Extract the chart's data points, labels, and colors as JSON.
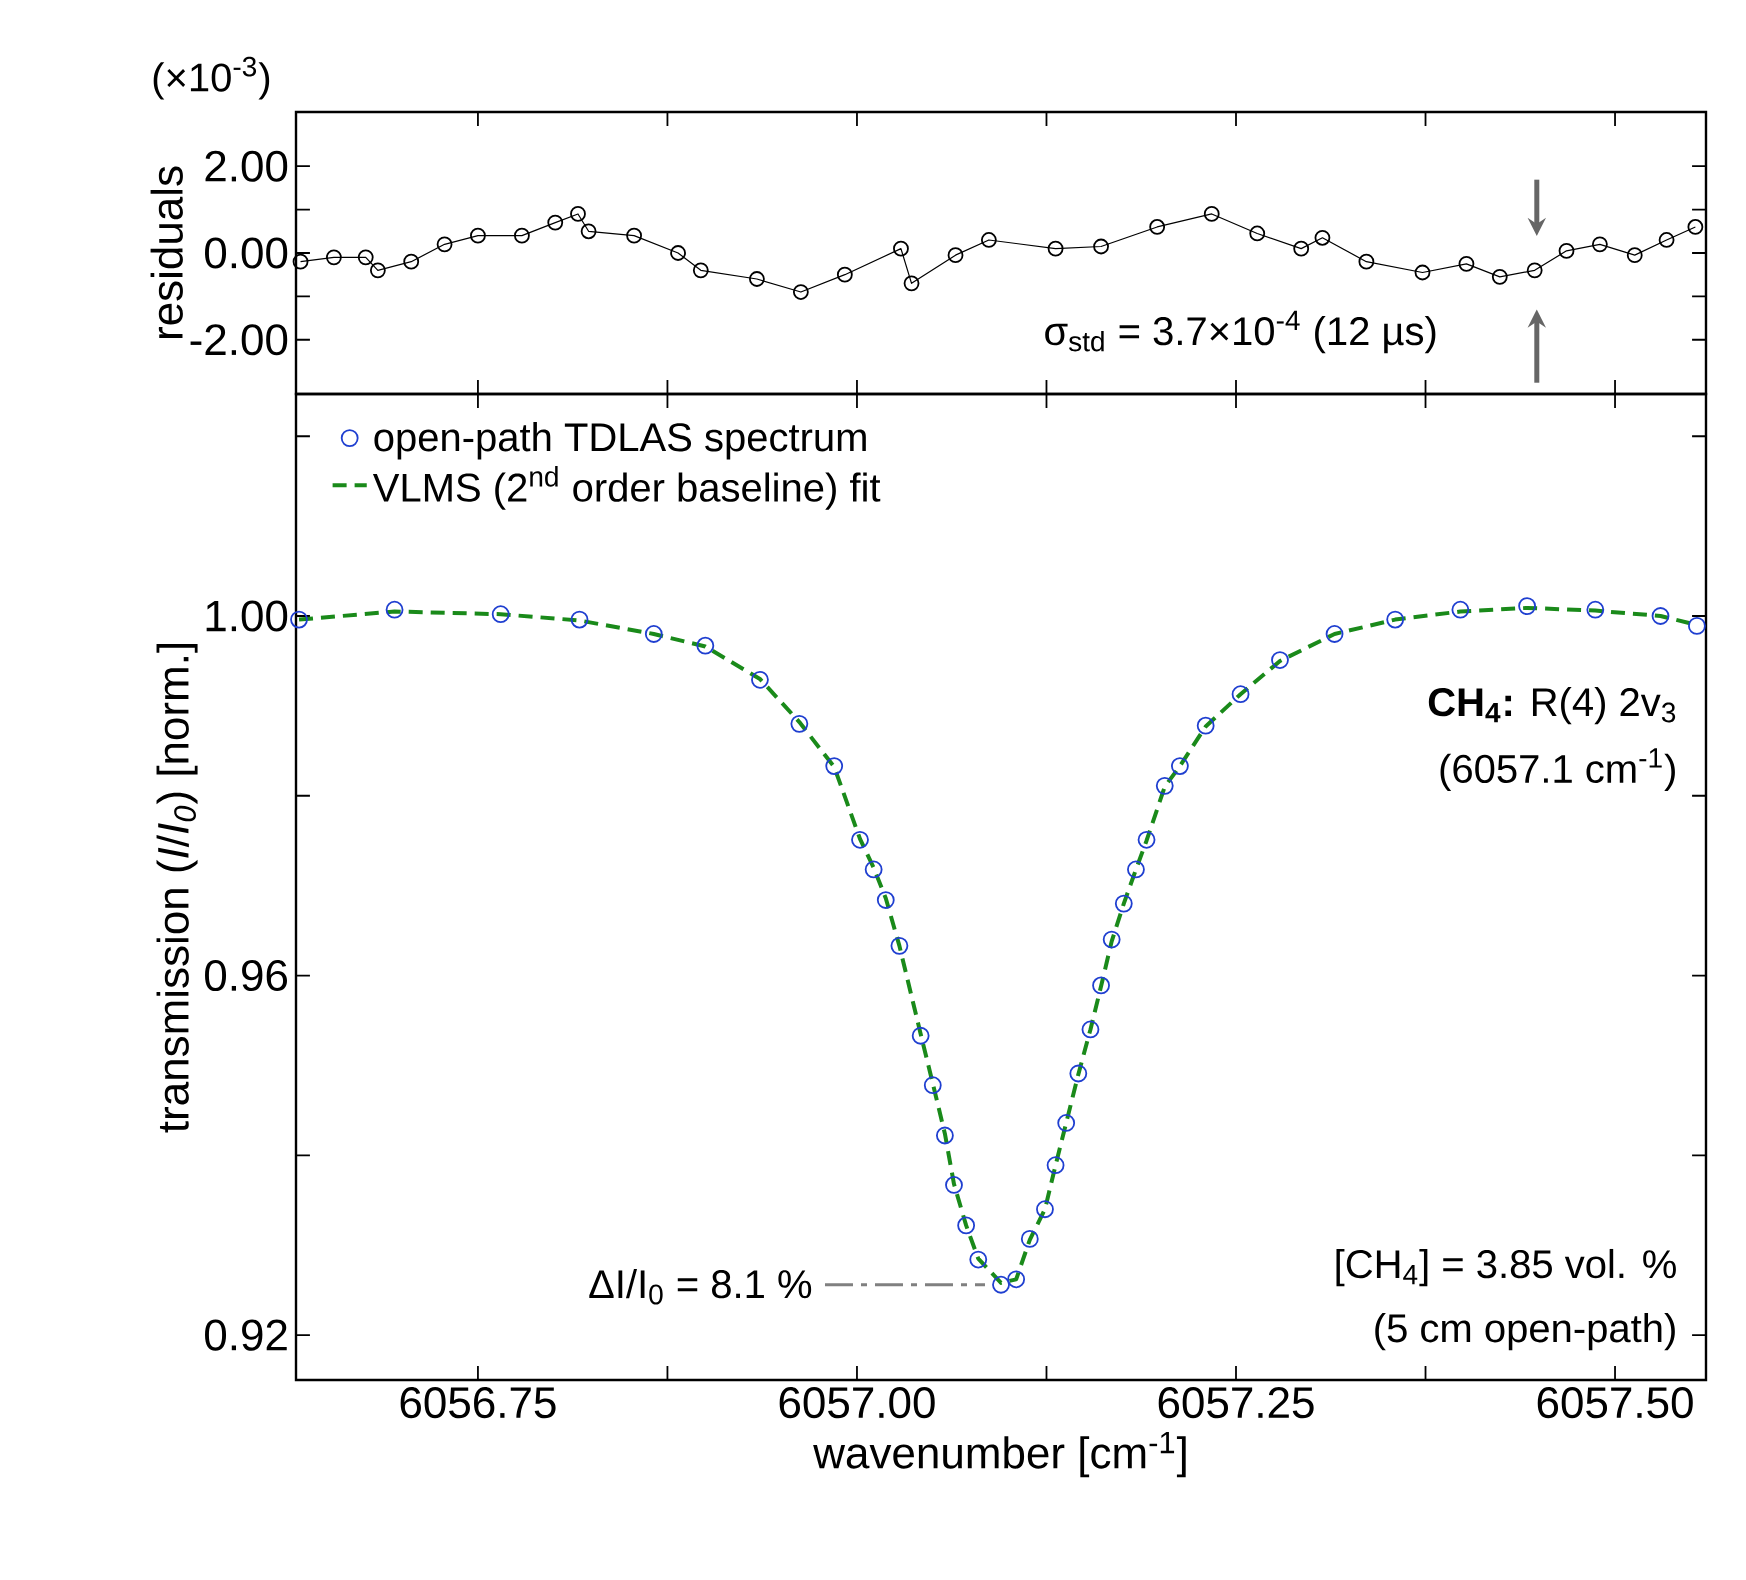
{
  "chart_data": [
    {
      "type": "line",
      "ylabel": "residuals",
      "xlim": [
        6056.63,
        6057.56
      ],
      "ylim": [
        -3.25,
        3.25
      ],
      "xticks": [
        {
          "value": 6056.75,
          "label": null
        },
        {
          "value": 6056.875,
          "label": null
        },
        {
          "value": 6057.0,
          "label": null
        },
        {
          "value": 6057.125,
          "label": null
        },
        {
          "value": 6057.25,
          "label": null
        },
        {
          "value": 6057.375,
          "label": null
        },
        {
          "value": 6057.5,
          "label": null
        }
      ],
      "yticks": [
        {
          "value": -2,
          "label": "-2.00"
        },
        {
          "value": -1,
          "label": null
        },
        {
          "value": 0,
          "label": "0.00"
        },
        {
          "value": 1,
          "label": null
        },
        {
          "value": 2,
          "label": "2.00"
        }
      ],
      "tick_labels": "y",
      "marker": "circle",
      "x": [
        6056.633,
        6056.655,
        6056.676,
        6056.684,
        6056.706,
        6056.728,
        6056.75,
        6056.779,
        6056.801,
        6056.816,
        6056.823,
        6056.853,
        6056.882,
        6056.897,
        6056.934,
        6056.963,
        6056.992,
        6057.029,
        6057.036,
        6057.065,
        6057.087,
        6057.131,
        6057.161,
        6057.198,
        6057.234,
        6057.264,
        6057.293,
        6057.307,
        6057.336,
        6057.373,
        6057.402,
        6057.424,
        6057.447,
        6057.468,
        6057.49,
        6057.513,
        6057.534,
        6057.553
      ],
      "series": [
        {
          "color": "#000000",
          "values": [
            -0.2,
            -0.1,
            -0.1,
            -0.4,
            -0.2,
            0.2,
            0.4,
            0.4,
            0.7,
            0.9,
            0.5,
            0.4,
            0.0,
            -0.4,
            -0.6,
            -0.9,
            -0.5,
            0.1,
            -0.7,
            -0.05,
            0.3,
            0.1,
            0.15,
            0.6,
            0.9,
            0.45,
            0.1,
            0.35,
            -0.2,
            -0.45,
            -0.25,
            -0.55,
            -0.4,
            0.05,
            0.2,
            -0.05,
            0.3,
            0.6
          ]
        }
      ],
      "annotations": [
        "(×10$^{-3}$)",
        "σ$_{std}$ = 3.7×10$^{-4}$ (12 µs)"
      ]
    },
    {
      "type": "scatter",
      "xlabel": "wavenumber [cm$^{-1}$]",
      "ylabel": "transmission (*I*/*I$_{0}$*) [norm.]",
      "xlim": [
        6056.63,
        6057.56
      ],
      "ylim": [
        0.915,
        1.0247
      ],
      "xticks": [
        6056.75,
        {
          "value": 6056.875,
          "label": null
        },
        {
          "value": 6057.0,
          "label": "6057.00"
        },
        {
          "value": 6057.125,
          "label": null
        },
        6057.25,
        {
          "value": 6057.375,
          "label": null
        },
        {
          "value": 6057.5,
          "label": "6057.50"
        }
      ],
      "yticks": [
        0.92,
        {
          "value": 0.94,
          "label": null
        },
        0.96,
        {
          "value": 0.98,
          "label": null
        },
        {
          "value": 1.0,
          "label": "1.00"
        },
        {
          "value": 1.02,
          "label": null
        }
      ],
      "legend": "top left",
      "x": [
        6056.632,
        6056.695,
        6056.765,
        6056.817,
        6056.866,
        6056.9,
        6056.936,
        6056.962,
        6056.985,
        6057.002,
        6057.011,
        6057.019,
        6057.028,
        6057.042,
        6057.05,
        6057.058,
        6057.064,
        6057.072,
        6057.08,
        6057.095,
        6057.105,
        6057.114,
        6057.124,
        6057.131,
        6057.138,
        6057.146,
        6057.154,
        6057.161,
        6057.168,
        6057.176,
        6057.184,
        6057.191,
        6057.203,
        6057.213,
        6057.23,
        6057.253,
        6057.279,
        6057.315,
        6057.355,
        6057.398,
        6057.442,
        6057.487,
        6057.53,
        6057.554
      ],
      "series": [
        {
          "name": "open-path TDLAS spectrum",
          "color": "#1f3fd0",
          "marker": "circle",
          "values": [
            0.9996,
            1.0007,
            1.0002,
            0.9996,
            0.998,
            0.9967,
            0.9929,
            0.988,
            0.9833,
            0.9751,
            0.9718,
            0.9684,
            0.9633,
            0.9533,
            0.9478,
            0.9422,
            0.9367,
            0.9322,
            0.9284,
            0.9256,
            0.9262,
            0.9307,
            0.934,
            0.9389,
            0.9436,
            0.9491,
            0.954,
            0.9589,
            0.964,
            0.968,
            0.9718,
            0.9751,
            0.9811,
            0.9833,
            0.9878,
            0.9913,
            0.9951,
            0.998,
            0.9996,
            1.0007,
            1.0011,
            1.0007,
            1.0,
            0.9989
          ]
        },
        {
          "name": "VLMS (2$^{nd}$ order baseline) fit",
          "type": "line",
          "color": "#1a8a1a",
          "marker": "none",
          "line_style": "dashed",
          "values": [
            0.9996,
            1.0005,
            1.0002,
            0.9995,
            0.998,
            0.9966,
            0.993,
            0.9882,
            0.9832,
            0.9752,
            0.972,
            0.9686,
            0.9633,
            0.9535,
            0.948,
            0.9424,
            0.9368,
            0.9322,
            0.9285,
            0.9258,
            0.9262,
            0.9306,
            0.934,
            0.9389,
            0.9436,
            0.949,
            0.954,
            0.9588,
            0.9638,
            0.968,
            0.9718,
            0.975,
            0.981,
            0.9833,
            0.9877,
            0.9913,
            0.995,
            0.998,
            0.9996,
            1.0005,
            1.0009,
            1.0006,
            1.0,
            0.999
          ]
        }
      ],
      "annotations": [
        "**CH$_{4}$:** R(4) 2v$_{3}$",
        "(6057.1 cm$^{-1}$)",
        "[CH$_{4}$] = 3.85 vol. %",
        "(5 cm open-path)",
        {
          "text": "ΔI/I$_{0}$ = 8.1 %",
          "x": 6057.095,
          "y": 0.9256
        }
      ]
    }
  ]
}
